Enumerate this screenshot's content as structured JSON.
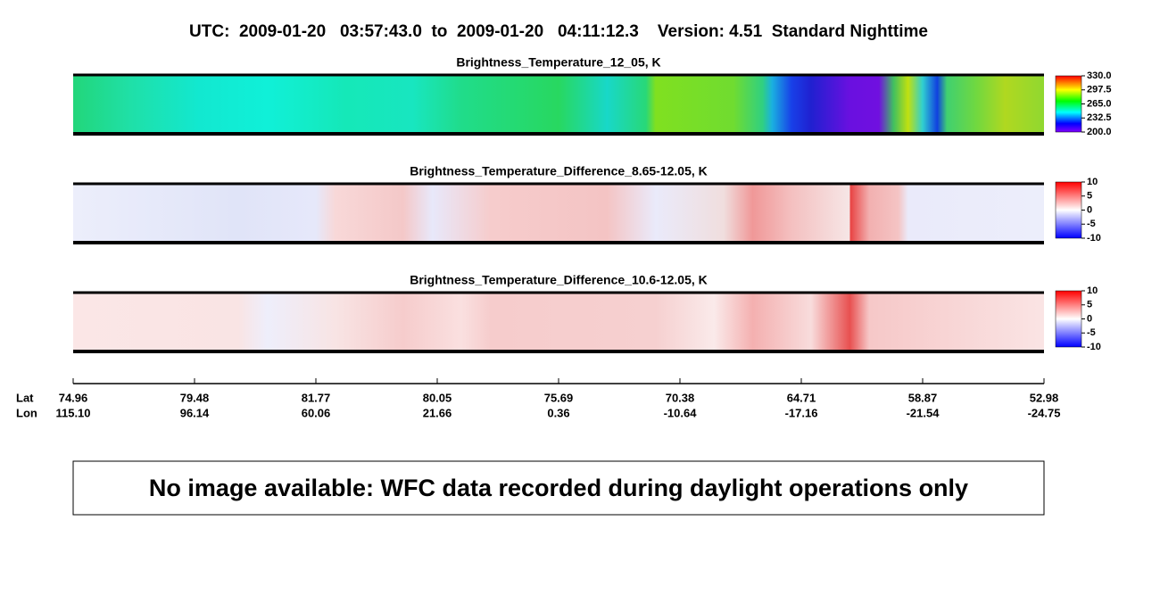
{
  "header": {
    "title": "UTC:  2009-01-20   03:57:43.0  to  2009-01-20   04:11:12.3    Version: 4.51  Standard Nighttime"
  },
  "panels": [
    {
      "title": "Brightness_Temperature_12_05, K",
      "colorbar_ticks": [
        "330.0",
        "297.5",
        "265.0",
        "232.5",
        "200.0"
      ]
    },
    {
      "title": "Brightness_Temperature_Difference_8.65-12.05, K",
      "colorbar_ticks": [
        "10",
        "5",
        "0",
        "-5",
        "-10"
      ]
    },
    {
      "title": "Brightness_Temperature_Difference_10.6-12.05, K",
      "colorbar_ticks": [
        "10",
        "5",
        "0",
        "-5",
        "-10"
      ]
    }
  ],
  "axis": {
    "lat_label": "Lat",
    "lon_label": "Lon",
    "lat": [
      "74.96",
      "79.48",
      "81.77",
      "80.05",
      "75.69",
      "70.38",
      "64.71",
      "58.87",
      "52.98"
    ],
    "lon": [
      "115.10",
      "96.14",
      "60.06",
      "21.66",
      "0.36",
      "-10.64",
      "-17.16",
      "-21.54",
      "-24.75"
    ]
  },
  "notice": "No image available: WFC data recorded during daylight operations only"
}
